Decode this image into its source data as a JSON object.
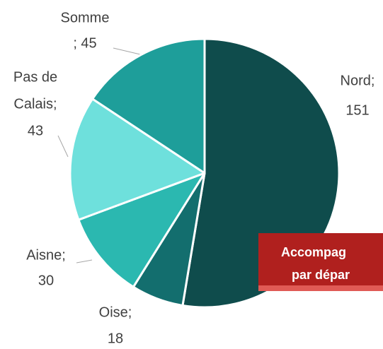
{
  "chart_data": {
    "type": "pie",
    "values": [
      151,
      18,
      30,
      43,
      45
    ],
    "value_labels": [
      [
        "Nord;",
        "151"
      ],
      [
        "Oise;",
        "18"
      ],
      [
        "Aisne;",
        "30"
      ],
      [
        "Pas de",
        "Calais;",
        "43"
      ],
      [
        "Somme",
        "; 45"
      ]
    ],
    "colors": [
      "#0f4c4c",
      "#136e6e",
      "#2bb8b0",
      "#6ee0dc",
      "#1e9e9a"
    ],
    "banner": [
      "Accompag",
      "par dépar"
    ]
  }
}
